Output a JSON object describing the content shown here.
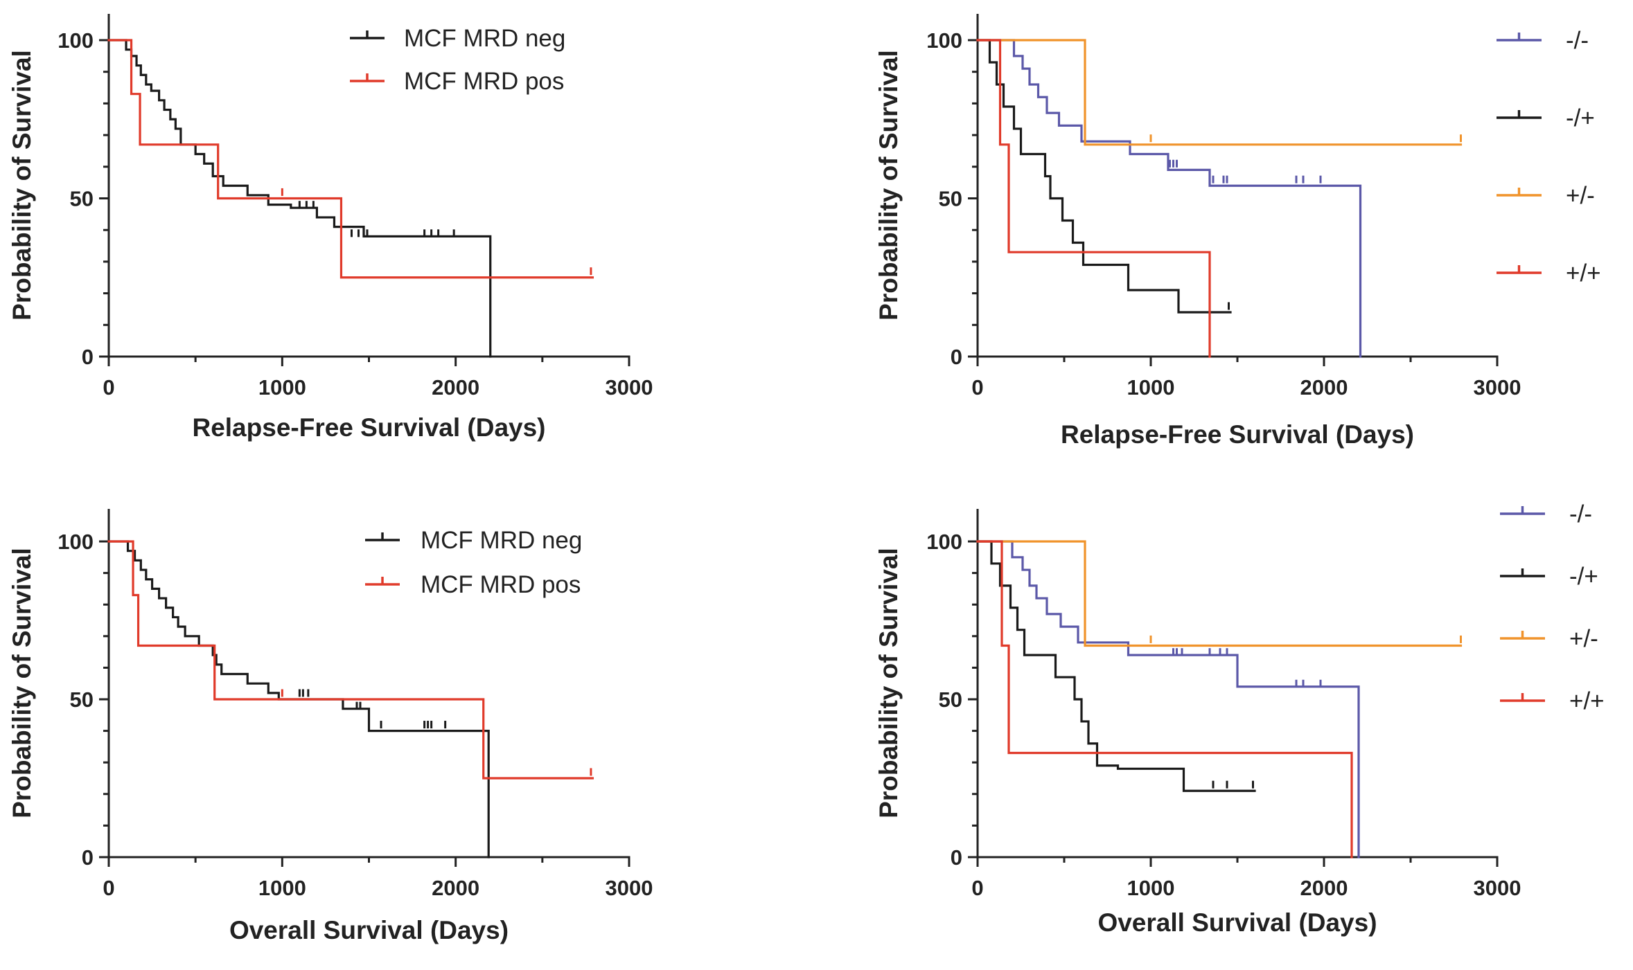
{
  "chart_data": [
    {
      "type": "line",
      "subtype": "kaplan-meier",
      "xlabel": "Relapse-Free Survival (Days)",
      "ylabel": "Probability of Survival",
      "xlim": [
        0,
        3000
      ],
      "ylim": [
        0,
        100
      ],
      "xticks": [
        "0",
        "1000",
        "2000",
        "3000"
      ],
      "yticks": [
        "0",
        "50",
        "100"
      ],
      "grid": false,
      "legend_position": "top-center",
      "series": [
        {
          "name": "MCF MRD neg",
          "color": "#1a1a1a",
          "steps": [
            [
              0,
              100
            ],
            [
              100,
              97
            ],
            [
              130,
              95
            ],
            [
              160,
              92
            ],
            [
              185,
              89
            ],
            [
              215,
              86
            ],
            [
              245,
              84
            ],
            [
              290,
              81
            ],
            [
              320,
              78
            ],
            [
              355,
              75
            ],
            [
              385,
              72
            ],
            [
              415,
              67
            ],
            [
              500,
              64
            ],
            [
              550,
              61
            ],
            [
              600,
              57
            ],
            [
              660,
              54
            ],
            [
              800,
              51
            ],
            [
              920,
              48
            ],
            [
              1050,
              47
            ],
            [
              1200,
              44
            ],
            [
              1300,
              41
            ],
            [
              1470,
              38
            ],
            [
              2200,
              0
            ]
          ],
          "censors": [
            [
              1100,
              47
            ],
            [
              1140,
              47
            ],
            [
              1180,
              47
            ],
            [
              1400,
              38
            ],
            [
              1440,
              38
            ],
            [
              1490,
              38
            ],
            [
              1820,
              38
            ],
            [
              1860,
              38
            ],
            [
              1900,
              38
            ],
            [
              1990,
              38
            ]
          ],
          "end": 2200
        },
        {
          "name": "MCF MRD pos",
          "color": "#e03a2a",
          "steps": [
            [
              0,
              100
            ],
            [
              130,
              83
            ],
            [
              180,
              67
            ],
            [
              630,
              50
            ],
            [
              1340,
              25
            ]
          ],
          "censors": [
            [
              1000,
              51
            ],
            [
              2780,
              26
            ]
          ],
          "end": 2790
        }
      ]
    },
    {
      "type": "line",
      "subtype": "kaplan-meier",
      "xlabel": "Relapse-Free Survival (Days)",
      "ylabel": "Probability of Survival",
      "xlim": [
        0,
        3000
      ],
      "ylim": [
        0,
        100
      ],
      "xticks": [
        "0",
        "1000",
        "2000",
        "3000"
      ],
      "yticks": [
        "0",
        "50",
        "100"
      ],
      "grid": false,
      "legend_position": "right",
      "series": [
        {
          "name": "-/-",
          "color": "#5b58a8",
          "steps": [
            [
              0,
              100
            ],
            [
              210,
              95
            ],
            [
              260,
              91
            ],
            [
              300,
              86
            ],
            [
              350,
              82
            ],
            [
              400,
              77
            ],
            [
              470,
              73
            ],
            [
              600,
              68
            ],
            [
              880,
              64
            ],
            [
              1100,
              59
            ],
            [
              1340,
              54
            ],
            [
              2210,
              0
            ]
          ],
          "censors": [
            [
              1110,
              60
            ],
            [
              1130,
              60
            ],
            [
              1150,
              60
            ],
            [
              1360,
              55
            ],
            [
              1420,
              55
            ],
            [
              1440,
              55
            ],
            [
              1840,
              55
            ],
            [
              1880,
              55
            ],
            [
              1980,
              55
            ]
          ],
          "end": 2210
        },
        {
          "name": "-/+",
          "color": "#1a1a1a",
          "steps": [
            [
              0,
              100
            ],
            [
              70,
              93
            ],
            [
              110,
              86
            ],
            [
              150,
              79
            ],
            [
              210,
              72
            ],
            [
              250,
              64
            ],
            [
              390,
              57
            ],
            [
              420,
              50
            ],
            [
              490,
              43
            ],
            [
              550,
              36
            ],
            [
              610,
              29
            ],
            [
              870,
              21
            ],
            [
              1160,
              14
            ]
          ],
          "censors": [
            [
              1450,
              15
            ]
          ],
          "end": 1460
        },
        {
          "name": "+/-",
          "color": "#f0932b",
          "steps": [
            [
              0,
              100
            ],
            [
              620,
              67
            ]
          ],
          "censors": [
            [
              1000,
              68
            ],
            [
              2790,
              68
            ]
          ],
          "end": 2790
        },
        {
          "name": "+/+",
          "color": "#e03a2a",
          "steps": [
            [
              0,
              100
            ],
            [
              130,
              67
            ],
            [
              180,
              33
            ],
            [
              1340,
              0
            ]
          ],
          "censors": [],
          "end": 1340
        }
      ]
    },
    {
      "type": "line",
      "subtype": "kaplan-meier",
      "xlabel": "Overall Survival (Days)",
      "ylabel": "Probability of Survival",
      "xlim": [
        0,
        3000
      ],
      "ylim": [
        0,
        100
      ],
      "xticks": [
        "0",
        "1000",
        "2000",
        "3000"
      ],
      "yticks": [
        "0",
        "50",
        "100"
      ],
      "grid": false,
      "legend_position": "top-center",
      "series": [
        {
          "name": "MCF MRD neg",
          "color": "#1a1a1a",
          "steps": [
            [
              0,
              100
            ],
            [
              110,
              97
            ],
            [
              150,
              94
            ],
            [
              185,
              91
            ],
            [
              215,
              88
            ],
            [
              250,
              85
            ],
            [
              290,
              82
            ],
            [
              330,
              79
            ],
            [
              370,
              76
            ],
            [
              400,
              73
            ],
            [
              440,
              70
            ],
            [
              520,
              67
            ],
            [
              600,
              64
            ],
            [
              620,
              61
            ],
            [
              650,
              58
            ],
            [
              800,
              55
            ],
            [
              920,
              52
            ],
            [
              980,
              50
            ],
            [
              1350,
              47
            ],
            [
              1500,
              40
            ],
            [
              2190,
              0
            ]
          ],
          "censors": [
            [
              1100,
              51
            ],
            [
              1120,
              51
            ],
            [
              1150,
              51
            ],
            [
              1430,
              47
            ],
            [
              1450,
              47
            ],
            [
              1570,
              41
            ],
            [
              1820,
              41
            ],
            [
              1840,
              41
            ],
            [
              1860,
              41
            ],
            [
              1940,
              41
            ]
          ],
          "end": 2190
        },
        {
          "name": "MCF MRD pos",
          "color": "#e03a2a",
          "steps": [
            [
              0,
              100
            ],
            [
              140,
              83
            ],
            [
              170,
              67
            ],
            [
              610,
              50
            ],
            [
              2160,
              25
            ]
          ],
          "censors": [
            [
              1000,
              51
            ],
            [
              2780,
              26
            ]
          ],
          "end": 2790
        }
      ]
    },
    {
      "type": "line",
      "subtype": "kaplan-meier",
      "xlabel": "Overall Survival (Days)",
      "ylabel": "Probability of Survival",
      "xlim": [
        0,
        3000
      ],
      "ylim": [
        0,
        100
      ],
      "xticks": [
        "0",
        "1000",
        "2000",
        "3000"
      ],
      "yticks": [
        "0",
        "50",
        "100"
      ],
      "grid": false,
      "legend_position": "right",
      "series": [
        {
          "name": "-/-",
          "color": "#5b58a8",
          "steps": [
            [
              0,
              100
            ],
            [
              200,
              95
            ],
            [
              260,
              91
            ],
            [
              300,
              86
            ],
            [
              340,
              82
            ],
            [
              400,
              77
            ],
            [
              480,
              73
            ],
            [
              580,
              68
            ],
            [
              870,
              64
            ],
            [
              1500,
              54
            ],
            [
              2200,
              0
            ]
          ],
          "censors": [
            [
              1130,
              64
            ],
            [
              1150,
              64
            ],
            [
              1180,
              64
            ],
            [
              1340,
              64
            ],
            [
              1400,
              64
            ],
            [
              1440,
              64
            ],
            [
              1840,
              54
            ],
            [
              1880,
              54
            ],
            [
              1980,
              54
            ]
          ],
          "end": 2200
        },
        {
          "name": "-/+",
          "color": "#1a1a1a",
          "steps": [
            [
              0,
              100
            ],
            [
              80,
              93
            ],
            [
              130,
              86
            ],
            [
              190,
              79
            ],
            [
              230,
              72
            ],
            [
              270,
              64
            ],
            [
              450,
              57
            ],
            [
              560,
              50
            ],
            [
              600,
              43
            ],
            [
              640,
              36
            ],
            [
              690,
              29
            ],
            [
              810,
              28
            ],
            [
              1190,
              21
            ]
          ],
          "censors": [
            [
              1360,
              22
            ],
            [
              1440,
              22
            ],
            [
              1590,
              22
            ]
          ],
          "end": 1600
        },
        {
          "name": "+/-",
          "color": "#f0932b",
          "steps": [
            [
              0,
              100
            ],
            [
              620,
              67
            ]
          ],
          "censors": [
            [
              1000,
              68
            ],
            [
              2790,
              68
            ]
          ],
          "end": 2790
        },
        {
          "name": "+/+",
          "color": "#e03a2a",
          "steps": [
            [
              0,
              100
            ],
            [
              140,
              67
            ],
            [
              180,
              33
            ],
            [
              2160,
              0
            ]
          ],
          "censors": [],
          "end": 2160
        }
      ]
    }
  ]
}
